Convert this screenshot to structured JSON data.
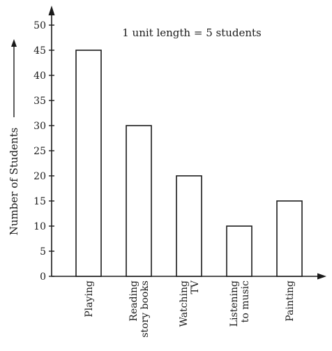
{
  "chart_data": {
    "type": "bar",
    "categories": [
      [
        "Playing"
      ],
      [
        "Reading",
        "story books"
      ],
      [
        "Watching",
        "TV"
      ],
      [
        "Listening",
        "to music"
      ],
      [
        "Painting"
      ]
    ],
    "values": [
      45,
      30,
      20,
      10,
      15
    ],
    "title": "",
    "annotation": "1 unit length = 5 students",
    "xlabel": "",
    "ylabel": "Number of Students",
    "ylim": [
      0,
      50
    ],
    "yticks": [
      0,
      5,
      10,
      15,
      20,
      25,
      30,
      35,
      40,
      45,
      50
    ],
    "grid": false,
    "bar_fill": "#ffffff",
    "bar_stroke": "#1a1a1a",
    "axis_color": "#1a1a1a"
  }
}
